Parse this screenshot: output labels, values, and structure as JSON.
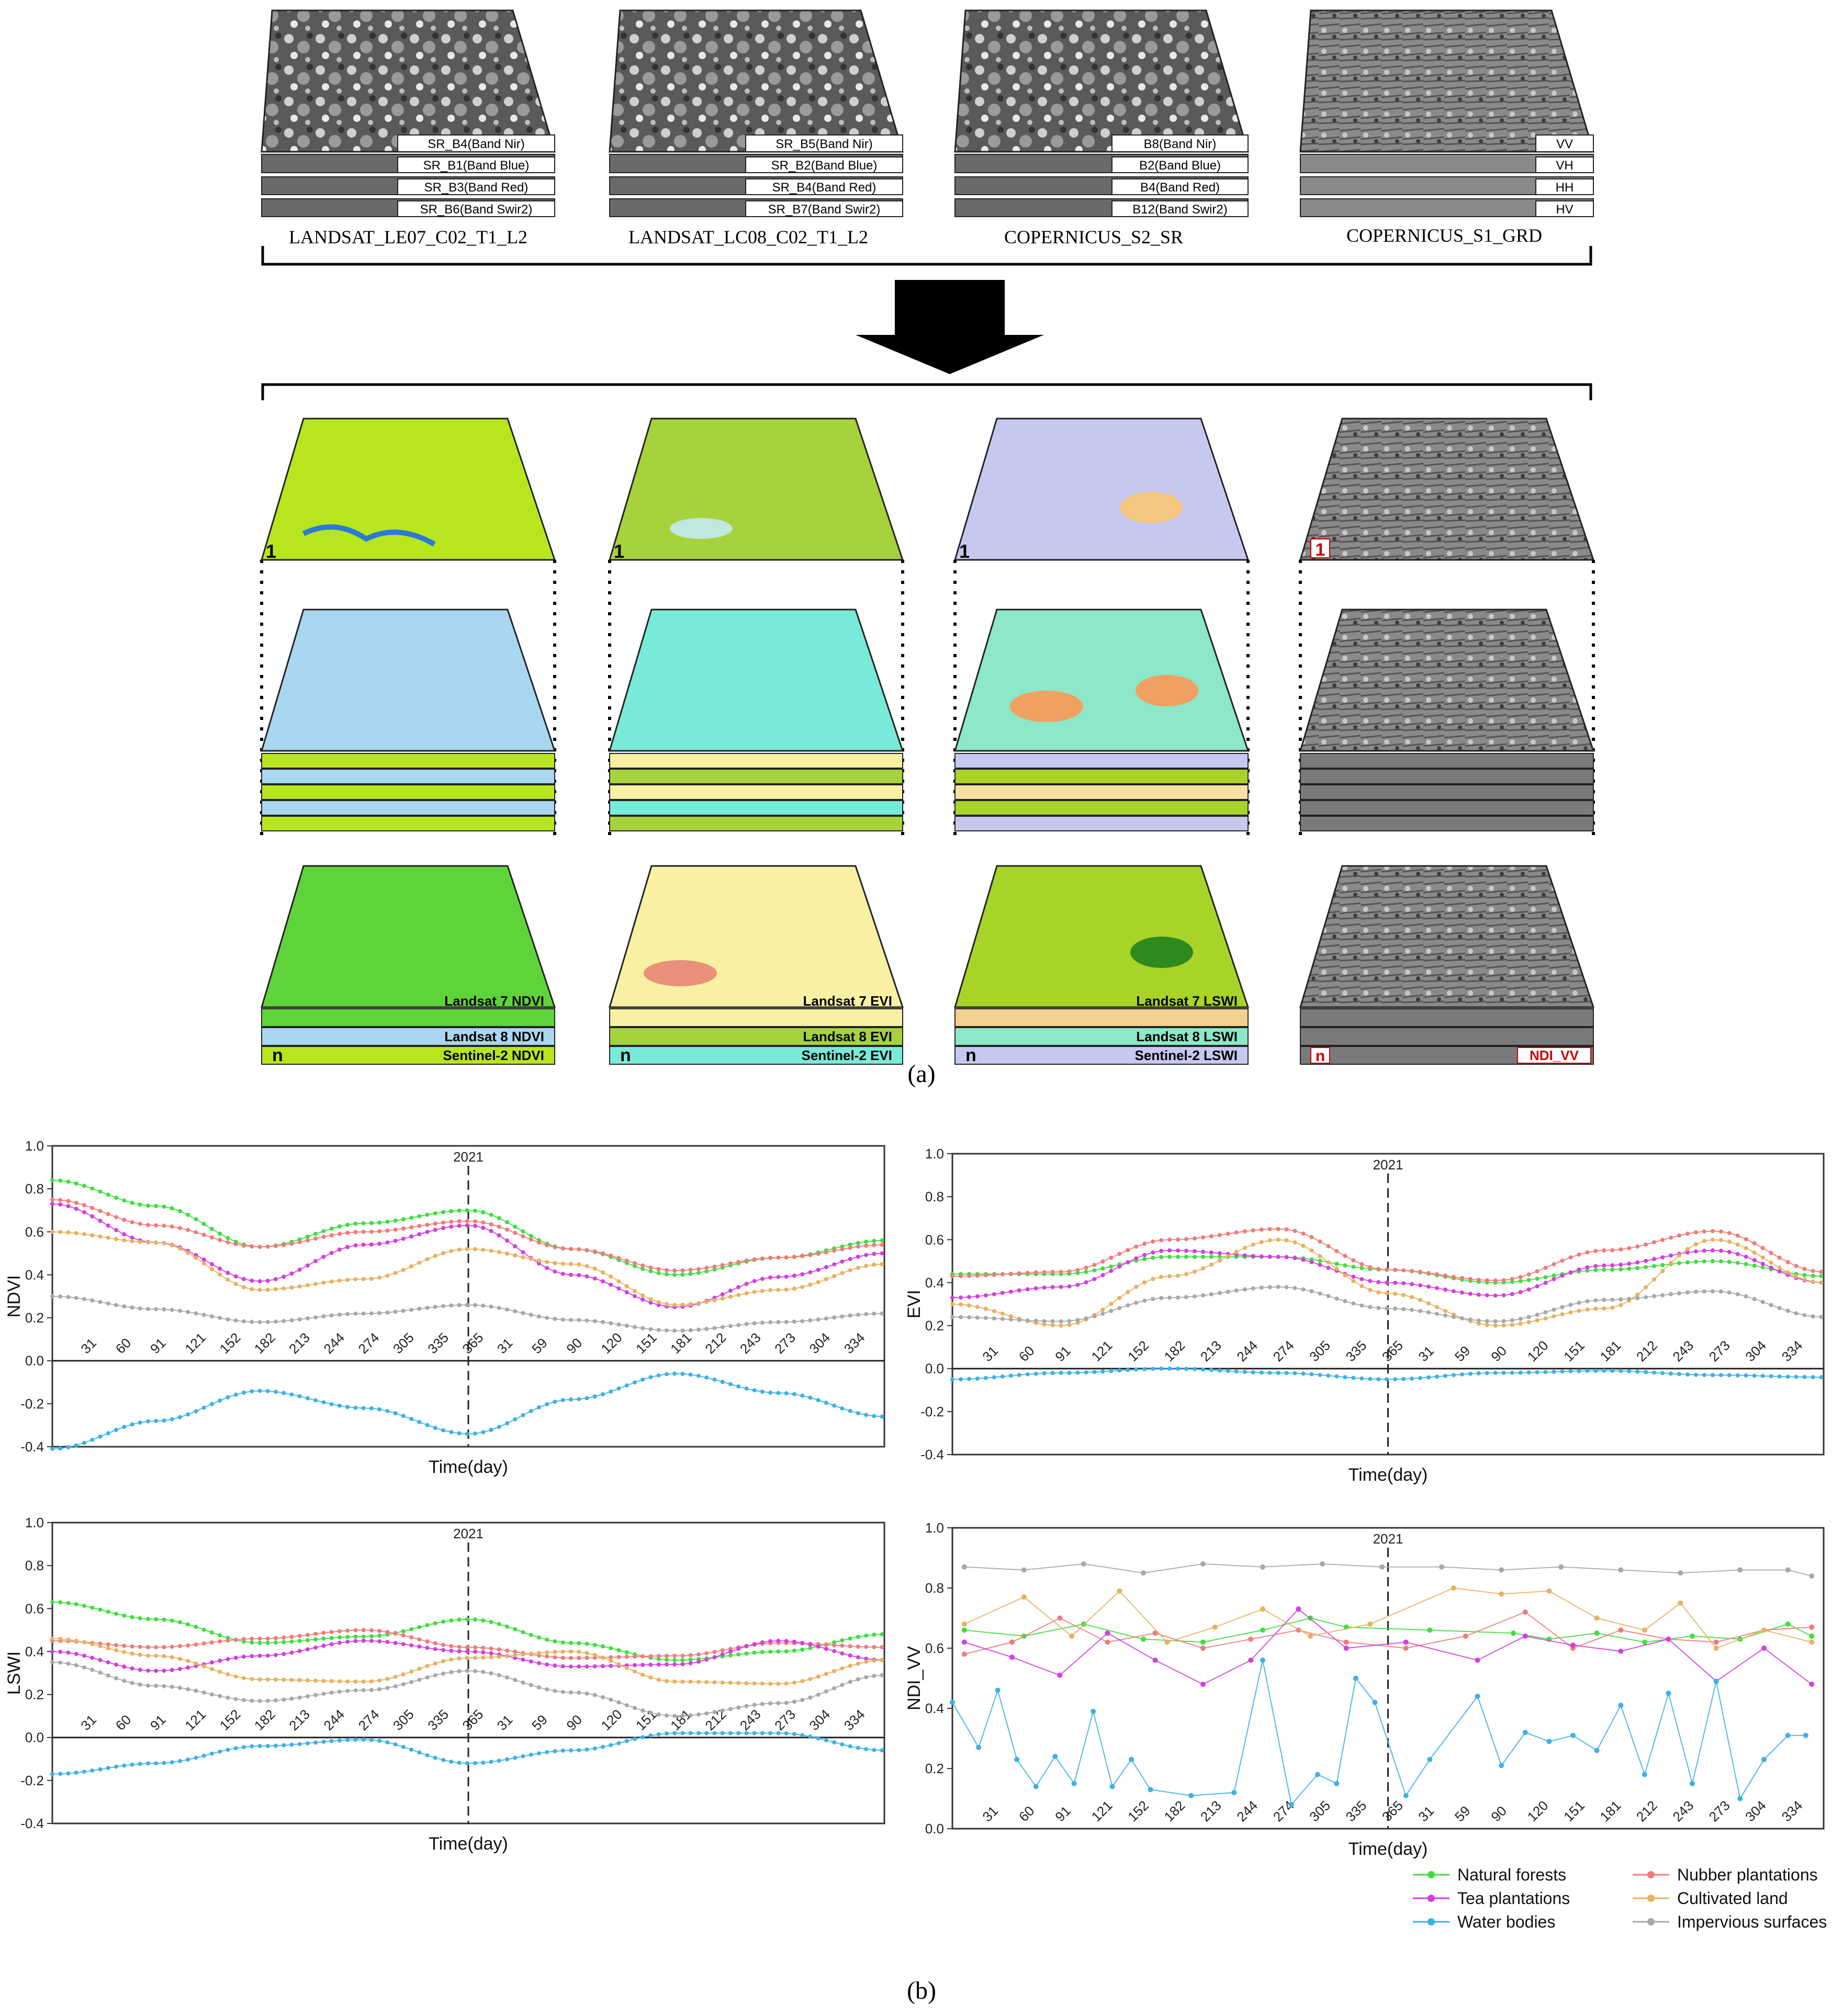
{
  "panel_a": {
    "caption": "(a)",
    "sources": [
      {
        "name": "LANDSAT_LE07_C02_T1_L2",
        "bands": [
          "SR_B4(Band Nir)",
          "SR_B1(Band Blue)",
          "SR_B3(Band Red)",
          "SR_B6(Band Swir2)"
        ]
      },
      {
        "name": "LANDSAT_LC08_C02_T1_L2",
        "bands": [
          "SR_B5(Band Nir)",
          "SR_B2(Band Blue)",
          "SR_B4(Band Red)",
          "SR_B7(Band Swir2)"
        ]
      },
      {
        "name": "COPERNICUS_S2_SR",
        "bands": [
          "B8(Band Nir)",
          "B2(Band Blue)",
          "B4(Band Red)",
          "B12(Band Swir2)"
        ]
      },
      {
        "name": "COPERNICUS_S1_GRD",
        "bands": [
          "VV",
          "VH",
          "HH",
          "HV"
        ]
      }
    ],
    "stacks": [
      {
        "top_label": "1",
        "bottom_label": "n",
        "layer_labels": [
          "Landsat 7 NDVI",
          "Landsat 8 NDVI",
          "Sentinel-2 NDVI"
        ],
        "colors": [
          "#b7e61e",
          "#a9d6f0",
          "#5fd43a"
        ]
      },
      {
        "top_label": "1",
        "bottom_label": "n",
        "layer_labels": [
          "Landsat 7 EVI",
          "Landsat 8 EVI",
          "Sentinel-2 EVI"
        ],
        "colors": [
          "#a6d23c",
          "#78ead8",
          "#f8f0a2"
        ]
      },
      {
        "top_label": "1",
        "bottom_label": "n",
        "layer_labels": [
          "Landsat 7 LSWI",
          "Landsat 8 LSWI",
          "Sentinel-2 LSWI"
        ],
        "colors": [
          "#c6c8f0",
          "#8ce8c8",
          "#a8d428"
        ]
      },
      {
        "top_label": "1",
        "bottom_label": "n",
        "layer_labels": [
          "NDI_VV"
        ],
        "colors": [
          "#8a8a8a",
          "#8a8a8a",
          "#8a8a8a"
        ]
      }
    ]
  },
  "panel_b": {
    "caption": "(b)"
  },
  "chart_data": [
    {
      "type": "line",
      "ylabel": "NDVI",
      "xlabel": "Time(day)",
      "ylim": [
        -0.4,
        1.0
      ],
      "yticks": [
        "-0.4",
        "-0.2",
        "0.0",
        "0.2",
        "0.4",
        "0.6",
        "0.8",
        "1.0"
      ],
      "x_ticks": [
        "31",
        "60",
        "91",
        "121",
        "152",
        "182",
        "213",
        "244",
        "274",
        "305",
        "335",
        "365",
        "31",
        "59",
        "90",
        "120",
        "151",
        "181",
        "212",
        "243",
        "273",
        "304",
        "334"
      ],
      "marker_label": "2021",
      "marker_x_day": 365,
      "x_range_days": [
        0,
        730
      ],
      "series": [
        {
          "name": "Natural forests",
          "color": "#3ede3e",
          "days": [
            0,
            91,
            182,
            274,
            365,
            456,
            547,
            638,
            730
          ],
          "values": [
            0.84,
            0.72,
            0.53,
            0.64,
            0.7,
            0.52,
            0.4,
            0.48,
            0.56
          ]
        },
        {
          "name": "Nubber plantations",
          "color": "#f07a7a",
          "days": [
            0,
            91,
            182,
            274,
            365,
            456,
            547,
            638,
            730
          ],
          "values": [
            0.75,
            0.63,
            0.53,
            0.6,
            0.65,
            0.52,
            0.42,
            0.48,
            0.54
          ]
        },
        {
          "name": "Tea plantations",
          "color": "#d43ee0",
          "days": [
            0,
            91,
            182,
            274,
            365,
            456,
            547,
            638,
            730
          ],
          "values": [
            0.73,
            0.55,
            0.37,
            0.54,
            0.63,
            0.4,
            0.25,
            0.39,
            0.5
          ]
        },
        {
          "name": "Cultivated land",
          "color": "#e8b060",
          "days": [
            0,
            91,
            182,
            274,
            365,
            456,
            547,
            638,
            730
          ],
          "values": [
            0.6,
            0.55,
            0.33,
            0.38,
            0.52,
            0.45,
            0.26,
            0.33,
            0.45
          ]
        },
        {
          "name": "Water bodies",
          "color": "#3eb0e6",
          "days": [
            0,
            91,
            182,
            274,
            365,
            456,
            547,
            638,
            730
          ],
          "values": [
            -0.41,
            -0.28,
            -0.14,
            -0.22,
            -0.34,
            -0.18,
            -0.06,
            -0.15,
            -0.26
          ]
        },
        {
          "name": "Impervious surfaces",
          "color": "#a8a8a8",
          "days": [
            0,
            91,
            182,
            274,
            365,
            456,
            547,
            638,
            730
          ],
          "values": [
            0.3,
            0.24,
            0.18,
            0.22,
            0.26,
            0.19,
            0.14,
            0.18,
            0.22
          ]
        }
      ]
    },
    {
      "type": "line",
      "ylabel": "EVI",
      "xlabel": "Time(day)",
      "ylim": [
        -0.4,
        1.0
      ],
      "yticks": [
        "-0.4",
        "-0.2",
        "0.0",
        "0.2",
        "0.4",
        "0.6",
        "0.8",
        "1.0"
      ],
      "x_ticks": [
        "31",
        "60",
        "91",
        "121",
        "152",
        "182",
        "213",
        "244",
        "274",
        "305",
        "335",
        "365",
        "31",
        "59",
        "90",
        "120",
        "151",
        "181",
        "212",
        "243",
        "273",
        "304",
        "334"
      ],
      "marker_label": "2021",
      "marker_x_day": 365,
      "x_range_days": [
        0,
        730
      ],
      "series": [
        {
          "name": "Natural forests",
          "color": "#3ede3e",
          "days": [
            0,
            91,
            182,
            274,
            365,
            456,
            547,
            638,
            730
          ],
          "values": [
            0.44,
            0.44,
            0.52,
            0.52,
            0.46,
            0.4,
            0.46,
            0.5,
            0.43
          ]
        },
        {
          "name": "Nubber plantations",
          "color": "#f07a7a",
          "days": [
            0,
            91,
            182,
            274,
            365,
            456,
            547,
            638,
            730
          ],
          "values": [
            0.43,
            0.45,
            0.6,
            0.65,
            0.46,
            0.41,
            0.55,
            0.64,
            0.45
          ]
        },
        {
          "name": "Tea plantations",
          "color": "#d43ee0",
          "days": [
            0,
            91,
            182,
            274,
            365,
            456,
            547,
            638,
            730
          ],
          "values": [
            0.33,
            0.38,
            0.55,
            0.52,
            0.4,
            0.34,
            0.48,
            0.55,
            0.4
          ]
        },
        {
          "name": "Cultivated land",
          "color": "#e8b060",
          "days": [
            0,
            91,
            182,
            274,
            365,
            456,
            547,
            638,
            730
          ],
          "values": [
            0.3,
            0.2,
            0.43,
            0.6,
            0.35,
            0.2,
            0.28,
            0.6,
            0.4
          ]
        },
        {
          "name": "Water bodies",
          "color": "#3eb0e6",
          "days": [
            0,
            91,
            182,
            274,
            365,
            456,
            547,
            638,
            730
          ],
          "values": [
            -0.05,
            -0.02,
            0.0,
            -0.02,
            -0.05,
            -0.02,
            -0.01,
            -0.03,
            -0.04
          ]
        },
        {
          "name": "Impervious surfaces",
          "color": "#a8a8a8",
          "days": [
            0,
            91,
            182,
            274,
            365,
            456,
            547,
            638,
            730
          ],
          "values": [
            0.24,
            0.22,
            0.33,
            0.38,
            0.28,
            0.22,
            0.32,
            0.36,
            0.24
          ]
        }
      ]
    },
    {
      "type": "line",
      "ylabel": "LSWI",
      "xlabel": "Time(day)",
      "ylim": [
        -0.4,
        1.0
      ],
      "yticks": [
        "-0.4",
        "-0.2",
        "0.0",
        "0.2",
        "0.4",
        "0.6",
        "0.8",
        "1.0"
      ],
      "x_ticks": [
        "31",
        "60",
        "91",
        "121",
        "152",
        "182",
        "213",
        "244",
        "274",
        "305",
        "335",
        "365",
        "31",
        "59",
        "90",
        "120",
        "151",
        "181",
        "212",
        "243",
        "273",
        "304",
        "334"
      ],
      "marker_label": "2021",
      "marker_x_day": 365,
      "x_range_days": [
        0,
        730
      ],
      "series": [
        {
          "name": "Natural forests",
          "color": "#3ede3e",
          "days": [
            0,
            91,
            182,
            274,
            365,
            456,
            547,
            638,
            730
          ],
          "values": [
            0.63,
            0.55,
            0.44,
            0.47,
            0.55,
            0.44,
            0.36,
            0.4,
            0.48
          ]
        },
        {
          "name": "Nubber plantations",
          "color": "#f07a7a",
          "days": [
            0,
            91,
            182,
            274,
            365,
            456,
            547,
            638,
            730
          ],
          "values": [
            0.45,
            0.42,
            0.46,
            0.5,
            0.42,
            0.37,
            0.38,
            0.44,
            0.42
          ]
        },
        {
          "name": "Tea plantations",
          "color": "#d43ee0",
          "days": [
            0,
            91,
            182,
            274,
            365,
            456,
            547,
            638,
            730
          ],
          "values": [
            0.4,
            0.31,
            0.38,
            0.45,
            0.4,
            0.33,
            0.34,
            0.45,
            0.36
          ]
        },
        {
          "name": "Cultivated land",
          "color": "#e8b060",
          "days": [
            0,
            91,
            182,
            274,
            365,
            456,
            547,
            638,
            730
          ],
          "values": [
            0.46,
            0.38,
            0.27,
            0.26,
            0.37,
            0.4,
            0.26,
            0.25,
            0.36
          ]
        },
        {
          "name": "Water bodies",
          "color": "#3eb0e6",
          "days": [
            0,
            91,
            182,
            274,
            365,
            456,
            547,
            638,
            730
          ],
          "values": [
            -0.17,
            -0.12,
            -0.04,
            -0.01,
            -0.12,
            -0.06,
            0.02,
            0.02,
            -0.06
          ]
        },
        {
          "name": "Impervious surfaces",
          "color": "#a8a8a8",
          "days": [
            0,
            91,
            182,
            274,
            365,
            456,
            547,
            638,
            730
          ],
          "values": [
            0.35,
            0.24,
            0.17,
            0.22,
            0.31,
            0.21,
            0.1,
            0.16,
            0.29
          ]
        }
      ]
    },
    {
      "type": "line",
      "ylabel": "NDI_VV",
      "xlabel": "Time(day)",
      "ylim": [
        0.0,
        1.0
      ],
      "yticks": [
        "0.0",
        "0.2",
        "0.4",
        "0.6",
        "0.8",
        "1.0"
      ],
      "x_ticks": [
        "31",
        "60",
        "91",
        "121",
        "152",
        "182",
        "213",
        "244",
        "274",
        "305",
        "335",
        "365",
        "31",
        "59",
        "90",
        "120",
        "151",
        "181",
        "212",
        "243",
        "273",
        "304",
        "334"
      ],
      "marker_label": "2021",
      "marker_x_day": 365,
      "x_range_days": [
        0,
        730
      ],
      "series": [
        {
          "name": "Natural forests",
          "color": "#3ede3e",
          "days": [
            10,
            60,
            110,
            160,
            210,
            260,
            300,
            330,
            400,
            470,
            500,
            540,
            580,
            620,
            660,
            700,
            720
          ],
          "values": [
            0.66,
            0.64,
            0.68,
            0.63,
            0.62,
            0.66,
            0.7,
            0.67,
            0.66,
            0.65,
            0.63,
            0.65,
            0.62,
            0.64,
            0.63,
            0.68,
            0.64
          ]
        },
        {
          "name": "Nubber plantations",
          "color": "#f07a7a",
          "days": [
            10,
            50,
            90,
            130,
            170,
            210,
            250,
            290,
            330,
            380,
            430,
            480,
            520,
            560,
            600,
            640,
            680,
            720
          ],
          "values": [
            0.58,
            0.62,
            0.7,
            0.62,
            0.65,
            0.6,
            0.63,
            0.66,
            0.62,
            0.6,
            0.64,
            0.72,
            0.6,
            0.66,
            0.63,
            0.62,
            0.66,
            0.67
          ]
        },
        {
          "name": "Tea plantations",
          "color": "#d43ee0",
          "days": [
            10,
            50,
            90,
            130,
            170,
            210,
            250,
            290,
            330,
            380,
            440,
            480,
            520,
            560,
            600,
            640,
            680,
            720
          ],
          "values": [
            0.62,
            0.57,
            0.51,
            0.65,
            0.56,
            0.48,
            0.56,
            0.73,
            0.6,
            0.62,
            0.56,
            0.64,
            0.61,
            0.59,
            0.63,
            0.49,
            0.6,
            0.48
          ]
        },
        {
          "name": "Cultivated land",
          "color": "#e8b060",
          "days": [
            10,
            60,
            100,
            140,
            180,
            220,
            260,
            300,
            350,
            420,
            460,
            500,
            540,
            580,
            610,
            640,
            680,
            720
          ],
          "values": [
            0.68,
            0.77,
            0.64,
            0.79,
            0.62,
            0.67,
            0.73,
            0.64,
            0.68,
            0.8,
            0.78,
            0.79,
            0.7,
            0.66,
            0.75,
            0.6,
            0.66,
            0.62
          ]
        },
        {
          "name": "Water bodies",
          "color": "#3eb0e6",
          "days": [
            0,
            22,
            38,
            54,
            70,
            86,
            102,
            118,
            134,
            150,
            166,
            200,
            236,
            260,
            284,
            306,
            322,
            338,
            354,
            380,
            400,
            440,
            460,
            480,
            500,
            520,
            540,
            560,
            580,
            600,
            620,
            640,
            660,
            680,
            700,
            715
          ],
          "values": [
            0.42,
            0.27,
            0.46,
            0.23,
            0.14,
            0.24,
            0.15,
            0.39,
            0.14,
            0.23,
            0.13,
            0.11,
            0.12,
            0.56,
            0.08,
            0.18,
            0.15,
            0.5,
            0.42,
            0.11,
            0.23,
            0.44,
            0.21,
            0.32,
            0.29,
            0.31,
            0.26,
            0.41,
            0.18,
            0.45,
            0.15,
            0.49,
            0.1,
            0.23,
            0.31,
            0.31
          ]
        },
        {
          "name": "Impervious surfaces",
          "color": "#a8a8a8",
          "days": [
            10,
            60,
            110,
            160,
            210,
            260,
            310,
            360,
            410,
            460,
            510,
            560,
            610,
            660,
            700,
            720
          ],
          "values": [
            0.87,
            0.86,
            0.88,
            0.85,
            0.88,
            0.87,
            0.88,
            0.87,
            0.87,
            0.86,
            0.87,
            0.86,
            0.85,
            0.86,
            0.86,
            0.84
          ]
        }
      ]
    }
  ],
  "legend": [
    {
      "label": "Natural forests",
      "color": "#3ede3e"
    },
    {
      "label": "Nubber plantations",
      "color": "#f07a7a"
    },
    {
      "label": "Tea plantations",
      "color": "#d43ee0"
    },
    {
      "label": "Cultivated land",
      "color": "#e8b060"
    },
    {
      "label": "Water bodies",
      "color": "#3eb0e6"
    },
    {
      "label": "Impervious surfaces",
      "color": "#a8a8a8"
    }
  ]
}
